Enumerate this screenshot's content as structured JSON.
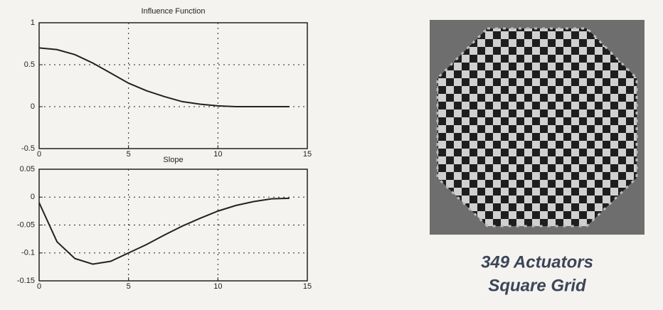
{
  "chart_data": [
    {
      "type": "line",
      "title": "Influence Function",
      "color": "#222222",
      "x": [
        0,
        1,
        2,
        3,
        4,
        5,
        6,
        7,
        8,
        9,
        10,
        11,
        12,
        13,
        14
      ],
      "values": [
        0.7,
        0.68,
        0.62,
        0.52,
        0.4,
        0.28,
        0.19,
        0.12,
        0.06,
        0.03,
        0.01,
        0,
        0,
        0,
        0
      ],
      "xlim": [
        0,
        15
      ],
      "xticks": [
        0,
        5,
        10,
        15
      ],
      "ylim": [
        -0.5,
        1
      ],
      "yticks": [
        -0.5,
        0,
        0.5,
        1
      ],
      "grid": true
    },
    {
      "type": "line",
      "title": "Slope",
      "color": "#222222",
      "x": [
        0,
        1,
        2,
        3,
        4,
        5,
        6,
        7,
        8,
        9,
        10,
        11,
        12,
        13,
        14
      ],
      "values": [
        -0.01,
        -0.08,
        -0.11,
        -0.12,
        -0.115,
        -0.1,
        -0.085,
        -0.068,
        -0.052,
        -0.038,
        -0.025,
        -0.015,
        -0.008,
        -0.003,
        -0.002
      ],
      "xlim": [
        0,
        15
      ],
      "xticks": [
        0,
        5,
        10,
        15
      ],
      "ylim": [
        -0.15,
        0.05
      ],
      "yticks": [
        -0.15,
        -0.1,
        -0.05,
        0,
        0.05
      ],
      "grid": true
    }
  ],
  "caption": [
    "349 Actuators",
    "Square Grid"
  ]
}
